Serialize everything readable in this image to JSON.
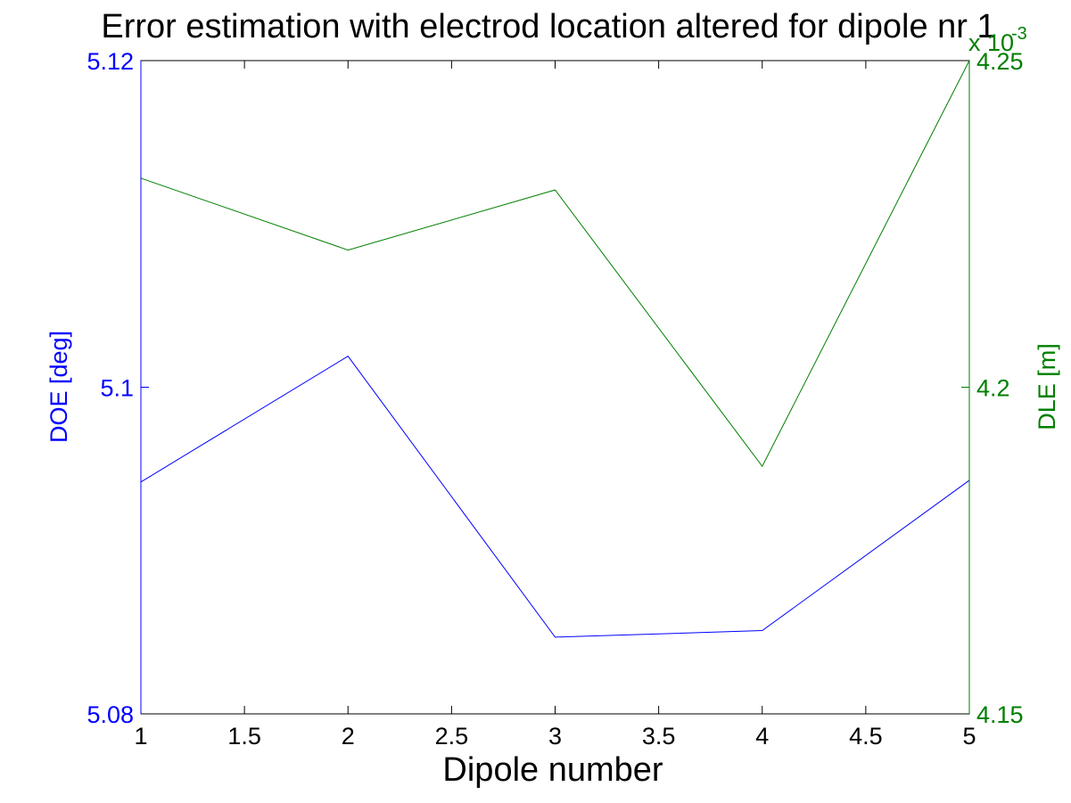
{
  "chart_data": {
    "type": "line",
    "title": "Error estimation with electrod location altered for dipole nr 1",
    "xlabel": "Dipole number",
    "x": [
      1,
      2,
      3,
      4,
      5
    ],
    "xlim": [
      1,
      5
    ],
    "xticks": [
      "1",
      "1.5",
      "2",
      "2.5",
      "3",
      "3.5",
      "4",
      "4.5",
      "5"
    ],
    "left_axis": {
      "ylabel": "DOE [deg]",
      "ylim": [
        5.08,
        5.12
      ],
      "yticks": [
        "5.08",
        "5.1",
        "5.12"
      ],
      "color": "#0000ff"
    },
    "right_axis": {
      "ylabel": "DLE [m]",
      "ylim": [
        4.15,
        4.25
      ],
      "yticks": [
        "4.15",
        "4.2",
        "4.25"
      ],
      "exponent_label": "x 10",
      "exponent": "-3",
      "color": "#007f00"
    },
    "series": [
      {
        "axis": "left",
        "color": "#0000ff",
        "values": [
          5.0942,
          5.1019,
          5.0847,
          5.0851,
          5.0943
        ]
      },
      {
        "axis": "right",
        "color": "#007f00",
        "values": [
          4.232,
          4.221,
          4.2302,
          4.1879,
          4.25
        ]
      }
    ],
    "grid": false,
    "legend": "none"
  }
}
